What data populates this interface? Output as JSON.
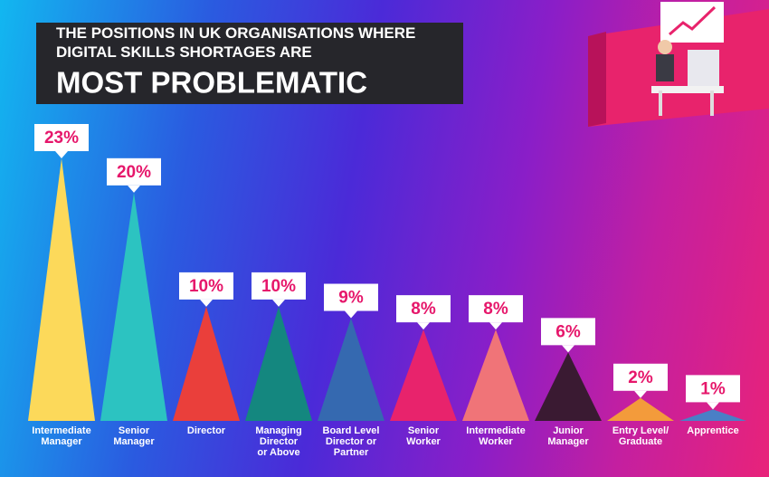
{
  "chart_data": {
    "type": "triangle-bar",
    "title": "THE POSITIONS IN UK ORGANISATIONS WHERE\nDIGITAL SKILLS SHORTAGES ARE",
    "subtitle": "MOST PROBLEMATIC",
    "categories": [
      "Intermediate\nManager",
      "Senior\nManager",
      "Director",
      "Managing\nDirector\nor Above",
      "Board Level\nDirector or\nPartner",
      "Senior\nWorker",
      "Intermediate\nWorker",
      "Junior\nManager",
      "Entry Level/\nGraduate",
      "Apprentice"
    ],
    "values": [
      23,
      20,
      10,
      10,
      9,
      8,
      8,
      6,
      2,
      1
    ],
    "value_labels": [
      "23%",
      "20%",
      "10%",
      "10%",
      "9%",
      "8%",
      "8%",
      "6%",
      "2%",
      "1%"
    ],
    "colors": [
      "#fcd95a",
      "#2cc3c1",
      "#ea3f3b",
      "#14877f",
      "#3569b0",
      "#e8236c",
      "#f07478",
      "#3a1a32",
      "#f39b3b",
      "#4a7fc6"
    ],
    "ylim": [
      0,
      23
    ]
  }
}
